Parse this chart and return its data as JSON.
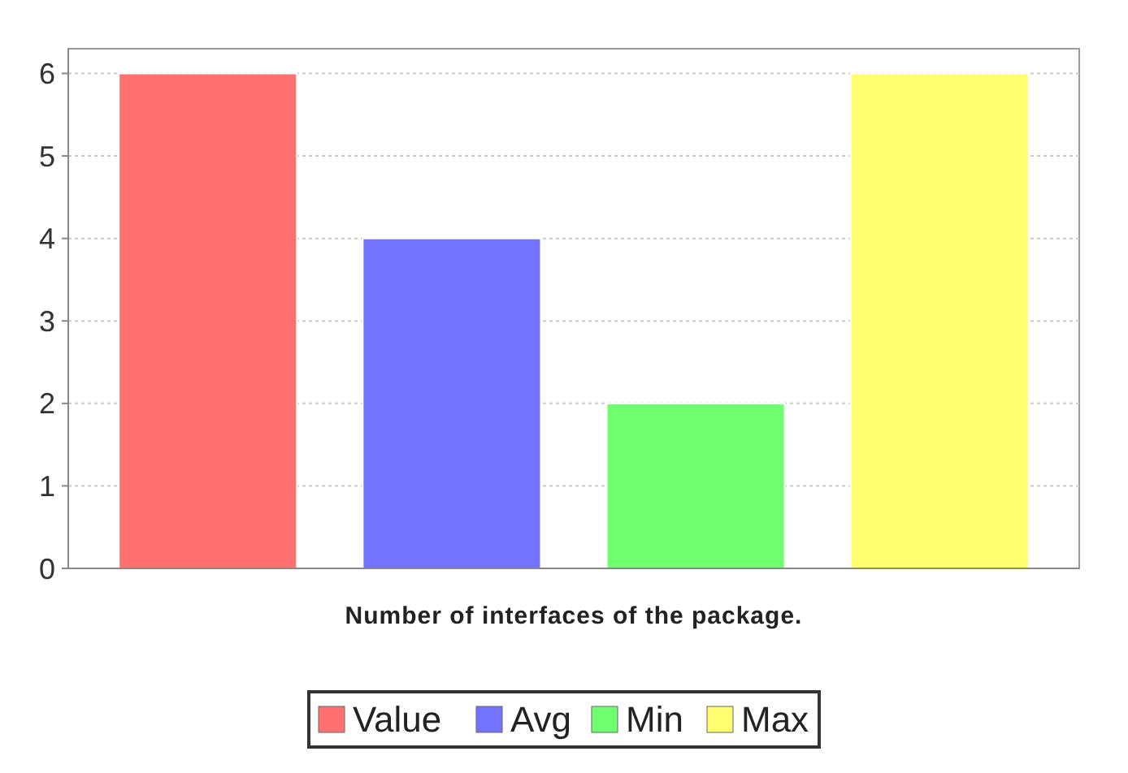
{
  "chart_data": {
    "type": "bar",
    "xlabel": "Number of interfaces of the package.",
    "categories": [
      null
    ],
    "series": [
      {
        "name": "Value",
        "color": "#ff7070",
        "values": [
          6
        ]
      },
      {
        "name": "Avg",
        "color": "#7373ff",
        "values": [
          4
        ]
      },
      {
        "name": "Min",
        "color": "#70ff70",
        "values": [
          2
        ]
      },
      {
        "name": "Max",
        "color": "#ffff70",
        "values": [
          6
        ]
      }
    ],
    "ylim": [
      0,
      6.3
    ],
    "yticks": [
      0,
      1,
      2,
      3,
      4,
      5,
      6
    ],
    "grid": "y",
    "legend": "bottom"
  }
}
